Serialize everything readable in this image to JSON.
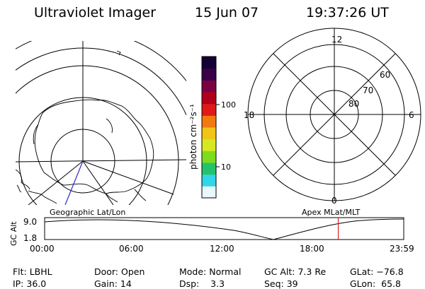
{
  "header": {
    "title": "Ultraviolet Imager",
    "date": "15 Jun 07",
    "time": "19:37:26 UT"
  },
  "colorbar": {
    "unit_label": "photon cm⁻²s⁻¹",
    "ticks": [
      {
        "label": "100",
        "value": 100
      },
      {
        "label": "10",
        "value": 10
      }
    ],
    "colors": [
      "#e8f8ff",
      "#33d6e6",
      "#22c46a",
      "#7edc20",
      "#d8e820",
      "#f0c418",
      "#f07a10",
      "#e01818",
      "#b0001c",
      "#7a0044",
      "#3a0048",
      "#140034"
    ]
  },
  "left_map": {
    "label": "Geographic Lat/Lon"
  },
  "right_map": {
    "label": "Apex MLat/MLT",
    "mlt_labels": [
      "12",
      "18",
      "6",
      "0"
    ],
    "lat_labels": [
      "60",
      "70",
      "80"
    ]
  },
  "altitude_plot": {
    "ylabel": "GC Alt",
    "ytick_labels": [
      "9.0",
      "1.8"
    ],
    "xtick_labels": [
      "00:00",
      "06:00",
      "12:00",
      "18:00",
      "23:59"
    ],
    "marker_time_hours": 19.624,
    "marker_color": "#e02020"
  },
  "info": {
    "filter": {
      "label": "Flt:",
      "value": "LBHL"
    },
    "ip": {
      "label": "IP:",
      "value": "36.0"
    },
    "door": {
      "label": "Door:",
      "value": "Open"
    },
    "gain": {
      "label": "Gain:",
      "value": "14"
    },
    "mode": {
      "label": "Mode:",
      "value": "Normal"
    },
    "dsp": {
      "label": "Dsp:",
      "value": "3.3"
    },
    "gc_alt": {
      "label": "GC Alt:",
      "value": "7.3 Re"
    },
    "seq": {
      "label": "Seq:",
      "value": "39"
    },
    "glat": {
      "label": "GLat:",
      "value": "−76.8"
    },
    "glon": {
      "label": "GLon:",
      "value": "65.8"
    }
  }
}
